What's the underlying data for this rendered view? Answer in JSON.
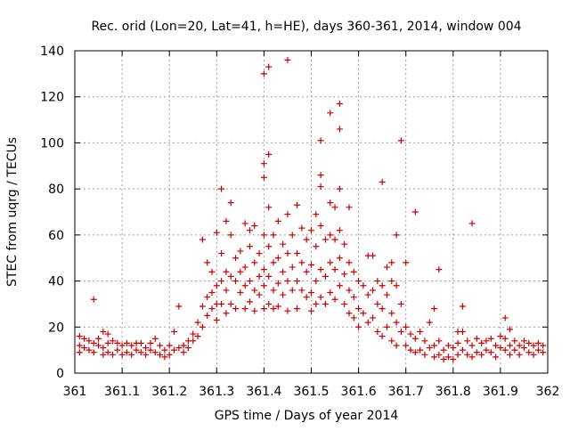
{
  "chart_data": {
    "type": "scatter",
    "title": "Rec. orid (Lon=20, Lat=41, h=HE), days 360-361, 2014, window 004",
    "xlabel": "GPS time / Days of year 2014",
    "ylabel": "STEC from uqrg / TECUs",
    "xlim": [
      361,
      362
    ],
    "ylim": [
      0,
      140
    ],
    "x_ticks": [
      361,
      361.1,
      361.2,
      361.3,
      361.4,
      361.5,
      361.6,
      361.7,
      361.8,
      361.9,
      362
    ],
    "x_tick_labels": [
      "361",
      "361.1",
      "361.2",
      "361.3",
      "361.4",
      "361.5",
      "361.6",
      "361.7",
      "361.8",
      "361.9",
      "362"
    ],
    "y_ticks": [
      0,
      20,
      40,
      60,
      80,
      100,
      120,
      140
    ],
    "y_tick_labels": [
      "0",
      "20",
      "40",
      "60",
      "80",
      "100",
      "120",
      "140"
    ],
    "grid": true,
    "marker": "+",
    "marker_color": "#cc0000",
    "series": [
      {
        "name": "",
        "points": [
          [
            361.01,
            16
          ],
          [
            361.01,
            12
          ],
          [
            361.01,
            9
          ],
          [
            361.02,
            15
          ],
          [
            361.02,
            11
          ],
          [
            361.03,
            14
          ],
          [
            361.03,
            10
          ],
          [
            361.04,
            32
          ],
          [
            361.04,
            13
          ],
          [
            361.04,
            9
          ],
          [
            361.05,
            15
          ],
          [
            361.05,
            12
          ],
          [
            361.06,
            18
          ],
          [
            361.06,
            11
          ],
          [
            361.06,
            8
          ],
          [
            361.07,
            17
          ],
          [
            361.07,
            13
          ],
          [
            361.07,
            9
          ],
          [
            361.08,
            14
          ],
          [
            361.08,
            8
          ],
          [
            361.09,
            13
          ],
          [
            361.09,
            10
          ],
          [
            361.1,
            12
          ],
          [
            361.1,
            8
          ],
          [
            361.11,
            13
          ],
          [
            361.11,
            9
          ],
          [
            361.12,
            12
          ],
          [
            361.12,
            8
          ],
          [
            361.13,
            13
          ],
          [
            361.13,
            10
          ],
          [
            361.14,
            13
          ],
          [
            361.14,
            9
          ],
          [
            361.15,
            11
          ],
          [
            361.15,
            8
          ],
          [
            361.16,
            13
          ],
          [
            361.16,
            10
          ],
          [
            361.17,
            15
          ],
          [
            361.17,
            9
          ],
          [
            361.18,
            12
          ],
          [
            361.18,
            8
          ],
          [
            361.19,
            10
          ],
          [
            361.19,
            7
          ],
          [
            361.2,
            12
          ],
          [
            361.2,
            8
          ],
          [
            361.21,
            18
          ],
          [
            361.21,
            10
          ],
          [
            361.22,
            29
          ],
          [
            361.22,
            11
          ],
          [
            361.23,
            12
          ],
          [
            361.23,
            9
          ],
          [
            361.24,
            14
          ],
          [
            361.24,
            11
          ],
          [
            361.25,
            17
          ],
          [
            361.25,
            14
          ],
          [
            361.26,
            22
          ],
          [
            361.26,
            16
          ],
          [
            361.27,
            58
          ],
          [
            361.27,
            29
          ],
          [
            361.27,
            20
          ],
          [
            361.28,
            48
          ],
          [
            361.28,
            33
          ],
          [
            361.28,
            25
          ],
          [
            361.29,
            44
          ],
          [
            361.29,
            35
          ],
          [
            361.29,
            28
          ],
          [
            361.3,
            61
          ],
          [
            361.3,
            38
          ],
          [
            361.3,
            30
          ],
          [
            361.3,
            23
          ],
          [
            361.31,
            80
          ],
          [
            361.31,
            52
          ],
          [
            361.31,
            40
          ],
          [
            361.31,
            30
          ],
          [
            361.32,
            66
          ],
          [
            361.32,
            44
          ],
          [
            361.32,
            36
          ],
          [
            361.32,
            26
          ],
          [
            361.33,
            74
          ],
          [
            361.33,
            60
          ],
          [
            361.33,
            42
          ],
          [
            361.33,
            30
          ],
          [
            361.34,
            50
          ],
          [
            361.34,
            40
          ],
          [
            361.34,
            28
          ],
          [
            361.35,
            53
          ],
          [
            361.35,
            44
          ],
          [
            361.35,
            35
          ],
          [
            361.36,
            65
          ],
          [
            361.36,
            46
          ],
          [
            361.36,
            38
          ],
          [
            361.36,
            28
          ],
          [
            361.37,
            62
          ],
          [
            361.37,
            55
          ],
          [
            361.37,
            40
          ],
          [
            361.37,
            31
          ],
          [
            361.38,
            64
          ],
          [
            361.38,
            48
          ],
          [
            361.38,
            36
          ],
          [
            361.38,
            27
          ],
          [
            361.39,
            52
          ],
          [
            361.39,
            42
          ],
          [
            361.39,
            34
          ],
          [
            361.4,
            130
          ],
          [
            361.4,
            91
          ],
          [
            361.4,
            85
          ],
          [
            361.4,
            60
          ],
          [
            361.4,
            45
          ],
          [
            361.4,
            38
          ],
          [
            361.4,
            28
          ],
          [
            361.41,
            133
          ],
          [
            361.41,
            95
          ],
          [
            361.41,
            72
          ],
          [
            361.41,
            55
          ],
          [
            361.41,
            42
          ],
          [
            361.41,
            30
          ],
          [
            361.42,
            60
          ],
          [
            361.42,
            48
          ],
          [
            361.42,
            36
          ],
          [
            361.42,
            28
          ],
          [
            361.43,
            66
          ],
          [
            361.43,
            50
          ],
          [
            361.43,
            39
          ],
          [
            361.43,
            29
          ],
          [
            361.44,
            56
          ],
          [
            361.44,
            44
          ],
          [
            361.44,
            34
          ],
          [
            361.45,
            136
          ],
          [
            361.45,
            69
          ],
          [
            361.45,
            52
          ],
          [
            361.45,
            40
          ],
          [
            361.45,
            27
          ],
          [
            361.46,
            60
          ],
          [
            361.46,
            46
          ],
          [
            361.46,
            36
          ],
          [
            361.47,
            73
          ],
          [
            361.47,
            52
          ],
          [
            361.47,
            40
          ],
          [
            361.47,
            28
          ],
          [
            361.48,
            63
          ],
          [
            361.48,
            48
          ],
          [
            361.48,
            36
          ],
          [
            361.49,
            58
          ],
          [
            361.49,
            44
          ],
          [
            361.49,
            33
          ],
          [
            361.5,
            62
          ],
          [
            361.5,
            47
          ],
          [
            361.5,
            35
          ],
          [
            361.5,
            27
          ],
          [
            361.51,
            69
          ],
          [
            361.51,
            55
          ],
          [
            361.51,
            40
          ],
          [
            361.51,
            30
          ],
          [
            361.52,
            101
          ],
          [
            361.52,
            86
          ],
          [
            361.52,
            81
          ],
          [
            361.52,
            64
          ],
          [
            361.52,
            45
          ],
          [
            361.52,
            33
          ],
          [
            361.53,
            58
          ],
          [
            361.53,
            42
          ],
          [
            361.53,
            30
          ],
          [
            361.54,
            113
          ],
          [
            361.54,
            74
          ],
          [
            361.54,
            60
          ],
          [
            361.54,
            48
          ],
          [
            361.54,
            35
          ],
          [
            361.55,
            72
          ],
          [
            361.55,
            58
          ],
          [
            361.55,
            45
          ],
          [
            361.55,
            32
          ],
          [
            361.56,
            117
          ],
          [
            361.56,
            106
          ],
          [
            361.56,
            80
          ],
          [
            361.56,
            62
          ],
          [
            361.56,
            50
          ],
          [
            361.56,
            38
          ],
          [
            361.57,
            56
          ],
          [
            361.57,
            43
          ],
          [
            361.57,
            30
          ],
          [
            361.58,
            72
          ],
          [
            361.58,
            48
          ],
          [
            361.58,
            36
          ],
          [
            361.58,
            26
          ],
          [
            361.59,
            44
          ],
          [
            361.59,
            33
          ],
          [
            361.59,
            24
          ],
          [
            361.6,
            40
          ],
          [
            361.6,
            28
          ],
          [
            361.6,
            20
          ],
          [
            361.61,
            38
          ],
          [
            361.61,
            26
          ],
          [
            361.62,
            51
          ],
          [
            361.62,
            34
          ],
          [
            361.62,
            22
          ],
          [
            361.63,
            51
          ],
          [
            361.63,
            36
          ],
          [
            361.63,
            24
          ],
          [
            361.64,
            40
          ],
          [
            361.64,
            30
          ],
          [
            361.64,
            18
          ],
          [
            361.65,
            83
          ],
          [
            361.65,
            38
          ],
          [
            361.65,
            28
          ],
          [
            361.65,
            16
          ],
          [
            361.66,
            46
          ],
          [
            361.66,
            34
          ],
          [
            361.66,
            20
          ],
          [
            361.67,
            48
          ],
          [
            361.67,
            40
          ],
          [
            361.67,
            26
          ],
          [
            361.67,
            14
          ],
          [
            361.68,
            60
          ],
          [
            361.68,
            38
          ],
          [
            361.68,
            22
          ],
          [
            361.68,
            12
          ],
          [
            361.69,
            101
          ],
          [
            361.69,
            30
          ],
          [
            361.69,
            18
          ],
          [
            361.7,
            48
          ],
          [
            361.7,
            20
          ],
          [
            361.7,
            12
          ],
          [
            361.71,
            17
          ],
          [
            361.71,
            10
          ],
          [
            361.72,
            70
          ],
          [
            361.72,
            15
          ],
          [
            361.72,
            9
          ],
          [
            361.73,
            18
          ],
          [
            361.73,
            10
          ],
          [
            361.74,
            14
          ],
          [
            361.74,
            8
          ],
          [
            361.75,
            22
          ],
          [
            361.75,
            11
          ],
          [
            361.76,
            28
          ],
          [
            361.76,
            12
          ],
          [
            361.76,
            7
          ],
          [
            361.77,
            45
          ],
          [
            361.77,
            14
          ],
          [
            361.77,
            8
          ],
          [
            361.78,
            10
          ],
          [
            361.78,
            6
          ],
          [
            361.79,
            12
          ],
          [
            361.79,
            7
          ],
          [
            361.8,
            11
          ],
          [
            361.8,
            6
          ],
          [
            361.81,
            18
          ],
          [
            361.81,
            13
          ],
          [
            361.81,
            8
          ],
          [
            361.82,
            29
          ],
          [
            361.82,
            18
          ],
          [
            361.82,
            10
          ],
          [
            361.83,
            14
          ],
          [
            361.83,
            8
          ],
          [
            361.84,
            65
          ],
          [
            361.84,
            12
          ],
          [
            361.84,
            7
          ],
          [
            361.85,
            15
          ],
          [
            361.85,
            9
          ],
          [
            361.86,
            13
          ],
          [
            361.86,
            8
          ],
          [
            361.87,
            14
          ],
          [
            361.87,
            10
          ],
          [
            361.88,
            15
          ],
          [
            361.88,
            9
          ],
          [
            361.89,
            12
          ],
          [
            361.89,
            7
          ],
          [
            361.9,
            16
          ],
          [
            361.9,
            11
          ],
          [
            361.91,
            24
          ],
          [
            361.91,
            15
          ],
          [
            361.91,
            10
          ],
          [
            361.92,
            19
          ],
          [
            361.92,
            12
          ],
          [
            361.92,
            8
          ],
          [
            361.93,
            14
          ],
          [
            361.93,
            10
          ],
          [
            361.94,
            12
          ],
          [
            361.94,
            8
          ],
          [
            361.95,
            14
          ],
          [
            361.95,
            11
          ],
          [
            361.96,
            13
          ],
          [
            361.96,
            9
          ],
          [
            361.97,
            12
          ],
          [
            361.97,
            8
          ],
          [
            361.98,
            13
          ],
          [
            361.98,
            10
          ],
          [
            361.99,
            12
          ],
          [
            361.99,
            9
          ]
        ]
      }
    ]
  }
}
